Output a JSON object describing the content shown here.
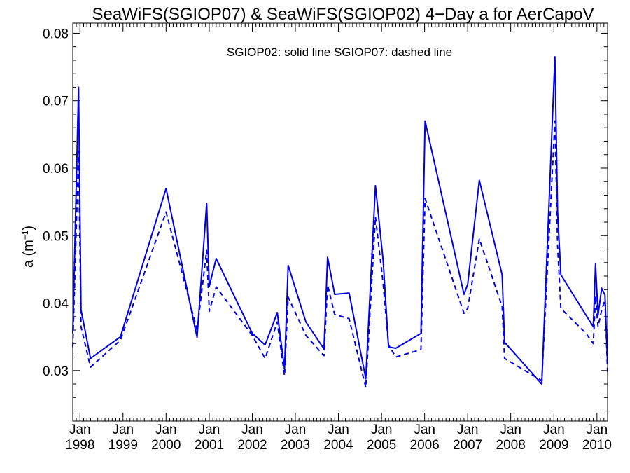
{
  "chart_data": {
    "type": "line",
    "title": "SeaWiFS(SGIOP07) & SeaWiFS(SGIOP02) 4−Day a for AerCapoV",
    "ylabel": "a (m",
    "ylabel_sup": "−1",
    "ylabel_close": ")",
    "annotation": "SGIOP02: solid line   SGIOP07: dashed line",
    "xlim": [
      "1997-11-01",
      "2010-04-01"
    ],
    "ylim": [
      0.0225,
      0.0815
    ],
    "y_ticks": [
      0.03,
      0.04,
      0.05,
      0.06,
      0.07,
      0.08
    ],
    "y_tick_labels": [
      "0.03",
      "0.04",
      "0.05",
      "0.06",
      "0.07",
      "0.08"
    ],
    "x_ticks": [
      {
        "date": "1998-01-01",
        "month": "Jan",
        "year": "1998"
      },
      {
        "date": "1999-01-01",
        "month": "Jan",
        "year": "1999"
      },
      {
        "date": "2000-01-01",
        "month": "Jan",
        "year": "2000"
      },
      {
        "date": "2001-01-01",
        "month": "Jan",
        "year": "2001"
      },
      {
        "date": "2002-01-01",
        "month": "Jan",
        "year": "2002"
      },
      {
        "date": "2003-01-01",
        "month": "Jan",
        "year": "2003"
      },
      {
        "date": "2004-01-01",
        "month": "Jan",
        "year": "2004"
      },
      {
        "date": "2005-01-01",
        "month": "Jan",
        "year": "2005"
      },
      {
        "date": "2006-01-01",
        "month": "Jan",
        "year": "2006"
      },
      {
        "date": "2007-01-01",
        "month": "Jan",
        "year": "2007"
      },
      {
        "date": "2008-01-01",
        "month": "Jan",
        "year": "2008"
      },
      {
        "date": "2009-01-01",
        "month": "Jan",
        "year": "2009"
      },
      {
        "date": "2010-01-01",
        "month": "Jan",
        "year": "2010"
      }
    ],
    "line_color": "#0000e6",
    "series": [
      {
        "style": "solid",
        "x": [
          "1997-11-01",
          "1997-12-20",
          "1998-01-10",
          "1998-04-01",
          "1998-12-10",
          "2000-01-01",
          "2000-09-20",
          "2000-12-10",
          "2001-01-01",
          "2001-03-01",
          "2002-01-01",
          "2002-04-20",
          "2002-08-01",
          "2002-10-01",
          "2002-11-01",
          "2003-04-01",
          "2003-09-01",
          "2003-10-01",
          "2003-12-01",
          "2004-04-01",
          "2004-08-20",
          "2004-11-10",
          "2005-01-15",
          "2005-03-01",
          "2005-05-01",
          "2005-12-01",
          "2006-01-05",
          "2006-12-01",
          "2007-01-01",
          "2007-04-10",
          "2007-10-20",
          "2007-11-10",
          "2008-09-20",
          "2009-01-10",
          "2009-02-01",
          "2009-03-01",
          "2009-10-01",
          "2009-12-01",
          "2009-12-20",
          "2010-01-10",
          "2010-02-10",
          "2010-03-10",
          "2010-04-01"
        ],
        "y": [
          0.0355,
          0.072,
          0.039,
          0.0318,
          0.035,
          0.057,
          0.0349,
          0.0548,
          0.0425,
          0.0466,
          0.0355,
          0.0338,
          0.0386,
          0.0302,
          0.0456,
          0.0372,
          0.0332,
          0.0468,
          0.0413,
          0.0415,
          0.0288,
          0.0574,
          0.0462,
          0.0335,
          0.0333,
          0.0355,
          0.067,
          0.0413,
          0.0428,
          0.0582,
          0.0442,
          0.0342,
          0.028,
          0.0765,
          0.0535,
          0.0442,
          0.0382,
          0.0365,
          0.0458,
          0.0382,
          0.0422,
          0.0412,
          0.031
        ]
      },
      {
        "style": "dashed",
        "x": [
          "1997-11-01",
          "1997-12-20",
          "1998-01-10",
          "1998-04-01",
          "1998-12-10",
          "2000-01-01",
          "2000-09-20",
          "2000-12-10",
          "2001-01-01",
          "2001-03-01",
          "2002-01-01",
          "2002-04-20",
          "2002-08-01",
          "2002-10-01",
          "2002-11-01",
          "2003-04-01",
          "2003-09-01",
          "2003-10-01",
          "2003-12-01",
          "2004-04-01",
          "2004-08-20",
          "2004-11-10",
          "2005-01-15",
          "2005-03-01",
          "2005-05-01",
          "2005-12-01",
          "2006-01-05",
          "2006-12-01",
          "2007-01-01",
          "2007-04-10",
          "2007-10-20",
          "2007-11-10",
          "2008-09-20",
          "2009-01-10",
          "2009-02-01",
          "2009-03-01",
          "2009-10-01",
          "2009-12-01",
          "2009-12-20",
          "2010-01-10",
          "2010-02-10",
          "2010-03-10",
          "2010-04-01"
        ],
        "y": [
          0.0335,
          0.0625,
          0.0365,
          0.0305,
          0.0345,
          0.0535,
          0.036,
          0.0478,
          0.0388,
          0.0424,
          0.0352,
          0.0318,
          0.0372,
          0.0292,
          0.0409,
          0.0352,
          0.0322,
          0.0427,
          0.0383,
          0.0377,
          0.0275,
          0.0528,
          0.0428,
          0.0338,
          0.032,
          0.0331,
          0.0555,
          0.0385,
          0.0392,
          0.0495,
          0.0395,
          0.0318,
          0.0285,
          0.067,
          0.0485,
          0.0392,
          0.0355,
          0.034,
          0.041,
          0.0365,
          0.039,
          0.0405,
          0.0298
        ]
      }
    ]
  }
}
